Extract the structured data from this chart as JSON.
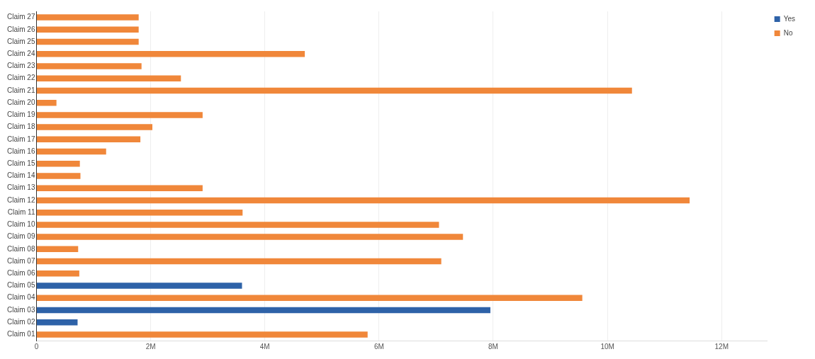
{
  "chart_data": {
    "type": "bar",
    "orientation": "horizontal",
    "categories": [
      "Claim 27",
      "Claim 26",
      "Claim 25",
      "Claim 24",
      "Claim 23",
      "Claim 22",
      "Claim 21",
      "Claim 20",
      "Claim 19",
      "Claim 18",
      "Claim 17",
      "Claim 16",
      "Claim 15",
      "Claim 14",
      "Claim 13",
      "Claim 12",
      "Claim 11",
      "Claim 10",
      "Claim 09",
      "Claim 08",
      "Claim 07",
      "Claim 06",
      "Claim 05",
      "Claim 04",
      "Claim 03",
      "Claim 02",
      "Claim 01"
    ],
    "series": [
      {
        "name": "Yes",
        "color": "#2e62a8",
        "values": [
          null,
          null,
          null,
          null,
          null,
          null,
          null,
          null,
          null,
          null,
          null,
          null,
          null,
          null,
          null,
          null,
          null,
          null,
          null,
          null,
          null,
          null,
          3.6,
          null,
          7.95,
          0.72,
          null
        ]
      },
      {
        "name": "No",
        "color": "#f0873a",
        "values": [
          1.79,
          1.79,
          1.79,
          4.7,
          1.84,
          2.53,
          10.43,
          0.35,
          2.91,
          2.03,
          1.82,
          1.22,
          0.76,
          0.77,
          2.91,
          11.44,
          3.61,
          7.05,
          7.47,
          0.73,
          7.09,
          0.75,
          null,
          9.56,
          null,
          null,
          5.8
        ]
      }
    ],
    "xlim": [
      0,
      12.8
    ],
    "xticks": [
      {
        "value": 0,
        "label": "0"
      },
      {
        "value": 2,
        "label": "2M"
      },
      {
        "value": 4,
        "label": "4M"
      },
      {
        "value": 6,
        "label": "6M"
      },
      {
        "value": 8,
        "label": "8M"
      },
      {
        "value": 10,
        "label": "10M"
      },
      {
        "value": 12,
        "label": "12M"
      }
    ],
    "grid": "x",
    "legend": "top right"
  }
}
